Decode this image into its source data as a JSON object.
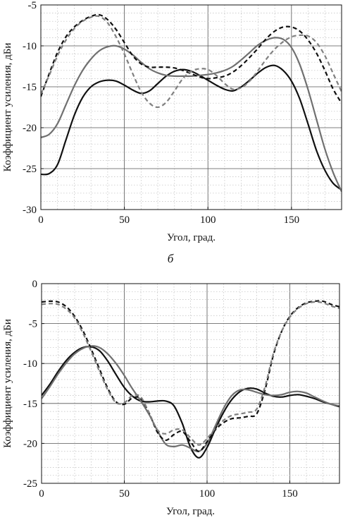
{
  "chart_data": [
    {
      "type": "line",
      "xlabel": "Угол, град.",
      "ylabel": "Коэффициент усиления, дБи",
      "xlim": [
        0,
        180
      ],
      "ylim": [
        -30,
        -5
      ],
      "xticks": [
        "0",
        "50",
        "100",
        "150"
      ],
      "yticks": [
        "-5",
        "-10",
        "-15",
        "-20",
        "-25",
        "-30"
      ],
      "grid": true,
      "series": [
        {
          "color": "#111111",
          "dash": "solid",
          "x": [
            0,
            5,
            10,
            15,
            20,
            25,
            30,
            35,
            40,
            45,
            50,
            55,
            60,
            65,
            70,
            75,
            80,
            85,
            90,
            95,
            100,
            105,
            110,
            115,
            120,
            125,
            130,
            135,
            140,
            145,
            150,
            155,
            160,
            165,
            170,
            175,
            180
          ],
          "y": [
            -25.7,
            -25.6,
            -24.5,
            -21.5,
            -18.5,
            -16.3,
            -15.0,
            -14.4,
            -14.2,
            -14.3,
            -14.8,
            -15.4,
            -15.8,
            -15.5,
            -14.6,
            -13.7,
            -13.1,
            -12.9,
            -13.1,
            -13.6,
            -14.2,
            -14.8,
            -15.3,
            -15.5,
            -15.0,
            -14.2,
            -13.3,
            -12.6,
            -12.4,
            -13.0,
            -14.3,
            -16.5,
            -19.6,
            -22.8,
            -25.2,
            -26.8,
            -27.6
          ]
        },
        {
          "color": "#707070",
          "dash": "solid",
          "x": [
            0,
            5,
            10,
            15,
            20,
            25,
            30,
            35,
            40,
            45,
            50,
            55,
            60,
            65,
            70,
            75,
            80,
            85,
            90,
            95,
            100,
            105,
            110,
            115,
            120,
            125,
            130,
            135,
            140,
            145,
            150,
            155,
            160,
            165,
            170,
            175,
            180
          ],
          "y": [
            -21.2,
            -20.8,
            -19.5,
            -17.2,
            -14.9,
            -13.0,
            -11.6,
            -10.6,
            -10.1,
            -10.0,
            -10.4,
            -11.1,
            -12.0,
            -12.8,
            -13.3,
            -13.6,
            -13.7,
            -13.7,
            -13.7,
            -13.6,
            -13.5,
            -13.3,
            -13.0,
            -12.5,
            -11.7,
            -10.8,
            -9.9,
            -9.3,
            -9.0,
            -9.2,
            -10.2,
            -12.3,
            -15.4,
            -19.0,
            -22.6,
            -25.5,
            -27.8
          ]
        },
        {
          "color": "#111111",
          "dash": "dashed",
          "x": [
            0,
            5,
            10,
            15,
            20,
            25,
            30,
            35,
            40,
            45,
            50,
            55,
            60,
            65,
            70,
            75,
            80,
            85,
            90,
            95,
            100,
            105,
            110,
            115,
            120,
            125,
            130,
            135,
            140,
            145,
            150,
            155,
            160,
            165,
            170,
            175,
            180
          ],
          "y": [
            -16.2,
            -13.4,
            -10.8,
            -8.9,
            -7.7,
            -6.9,
            -6.4,
            -6.2,
            -6.8,
            -8.0,
            -9.6,
            -11.2,
            -12.2,
            -12.6,
            -12.6,
            -12.6,
            -12.7,
            -13.0,
            -13.4,
            -13.8,
            -14.0,
            -13.9,
            -13.7,
            -13.2,
            -12.4,
            -11.4,
            -10.3,
            -9.1,
            -8.2,
            -7.7,
            -7.7,
            -8.2,
            -9.3,
            -10.9,
            -13.0,
            -15.3,
            -17.0
          ]
        },
        {
          "color": "#808080",
          "dash": "dashed",
          "x": [
            0,
            5,
            10,
            15,
            20,
            25,
            30,
            35,
            40,
            45,
            50,
            55,
            60,
            65,
            70,
            75,
            80,
            85,
            90,
            95,
            100,
            105,
            110,
            115,
            120,
            125,
            130,
            135,
            140,
            145,
            150,
            155,
            160,
            165,
            170,
            175,
            180
          ],
          "y": [
            -15.9,
            -13.6,
            -11.2,
            -9.3,
            -7.9,
            -7.0,
            -6.5,
            -6.4,
            -7.2,
            -8.9,
            -11.0,
            -13.4,
            -15.6,
            -17.0,
            -17.5,
            -16.9,
            -15.5,
            -14.0,
            -13.1,
            -12.8,
            -12.9,
            -13.6,
            -14.6,
            -15.3,
            -15.1,
            -14.3,
            -13.0,
            -11.6,
            -10.4,
            -9.5,
            -8.9,
            -8.7,
            -8.8,
            -9.6,
            -11.2,
            -13.4,
            -15.6
          ]
        }
      ]
    },
    {
      "type": "line",
      "panel_label": "б",
      "xlabel": "Угол, град.",
      "ylabel": "Коэффициент усиления, дБи",
      "xlim": [
        0,
        180
      ],
      "ylim": [
        -25,
        0
      ],
      "xticks": [
        "0",
        "50",
        "100",
        "150"
      ],
      "yticks": [
        "0",
        "-5",
        "-10",
        "-15",
        "-20",
        "-25"
      ],
      "grid": true,
      "series": [
        {
          "color": "#111111",
          "dash": "solid",
          "x": [
            0,
            5,
            10,
            15,
            20,
            25,
            30,
            35,
            40,
            45,
            50,
            55,
            60,
            65,
            70,
            75,
            80,
            85,
            90,
            95,
            100,
            105,
            110,
            115,
            120,
            125,
            130,
            135,
            140,
            145,
            150,
            155,
            160,
            165,
            170,
            175,
            180
          ],
          "y": [
            -14.0,
            -12.6,
            -11.0,
            -9.6,
            -8.6,
            -8.0,
            -7.9,
            -8.4,
            -9.7,
            -11.4,
            -13.0,
            -14.1,
            -14.7,
            -14.8,
            -14.7,
            -14.7,
            -15.3,
            -17.5,
            -20.5,
            -21.8,
            -20.5,
            -18.2,
            -16.1,
            -14.5,
            -13.5,
            -13.1,
            -13.2,
            -13.7,
            -14.1,
            -14.2,
            -14.0,
            -13.9,
            -14.1,
            -14.4,
            -14.8,
            -15.1,
            -15.4
          ]
        },
        {
          "color": "#707070",
          "dash": "solid",
          "x": [
            0,
            5,
            10,
            15,
            20,
            25,
            30,
            35,
            40,
            45,
            50,
            55,
            60,
            65,
            70,
            75,
            80,
            85,
            90,
            95,
            100,
            105,
            110,
            115,
            120,
            125,
            130,
            135,
            140,
            145,
            150,
            155,
            160,
            165,
            170,
            175,
            180
          ],
          "y": [
            -14.4,
            -12.9,
            -11.3,
            -9.9,
            -8.8,
            -8.1,
            -7.8,
            -8.0,
            -8.8,
            -10.0,
            -11.5,
            -13.2,
            -14.7,
            -16.4,
            -18.4,
            -20.1,
            -20.4,
            -20.2,
            -20.6,
            -21.0,
            -20.0,
            -17.8,
            -15.6,
            -14.0,
            -13.3,
            -13.3,
            -13.6,
            -13.9,
            -14.0,
            -13.9,
            -13.6,
            -13.5,
            -13.7,
            -14.2,
            -14.7,
            -15.1,
            -15.3
          ]
        },
        {
          "color": "#111111",
          "dash": "dashed",
          "x": [
            0,
            5,
            10,
            15,
            20,
            25,
            30,
            35,
            40,
            45,
            50,
            55,
            60,
            65,
            70,
            75,
            80,
            85,
            90,
            95,
            100,
            105,
            110,
            115,
            120,
            125,
            130,
            135,
            140,
            145,
            150,
            155,
            160,
            165,
            170,
            175,
            180
          ],
          "y": [
            -2.3,
            -2.2,
            -2.3,
            -2.9,
            -4.1,
            -5.9,
            -8.2,
            -10.7,
            -13.1,
            -14.8,
            -15.1,
            -14.3,
            -14.4,
            -16.2,
            -18.6,
            -19.6,
            -18.9,
            -18.5,
            -19.8,
            -21.0,
            -19.8,
            -18.3,
            -17.4,
            -16.9,
            -16.8,
            -16.6,
            -16.3,
            -13.3,
            -9.0,
            -6.0,
            -4.1,
            -3.0,
            -2.4,
            -2.2,
            -2.2,
            -2.6,
            -2.9
          ]
        },
        {
          "color": "#808080",
          "dash": "dashed",
          "x": [
            0,
            5,
            10,
            15,
            20,
            25,
            30,
            35,
            40,
            45,
            50,
            55,
            60,
            65,
            70,
            75,
            80,
            85,
            90,
            95,
            100,
            105,
            110,
            115,
            120,
            125,
            130,
            135,
            140,
            145,
            150,
            155,
            160,
            165,
            170,
            175,
            180
          ],
          "y": [
            -2.6,
            -2.5,
            -2.6,
            -3.2,
            -4.3,
            -6.2,
            -8.5,
            -11.0,
            -13.3,
            -14.9,
            -14.9,
            -14.0,
            -14.2,
            -16.2,
            -18.3,
            -18.8,
            -18.3,
            -18.3,
            -19.3,
            -20.2,
            -19.4,
            -18.1,
            -17.1,
            -16.5,
            -16.3,
            -16.1,
            -15.7,
            -12.9,
            -8.8,
            -6.0,
            -4.2,
            -3.1,
            -2.5,
            -2.3,
            -2.4,
            -2.8,
            -3.1
          ]
        }
      ]
    }
  ]
}
